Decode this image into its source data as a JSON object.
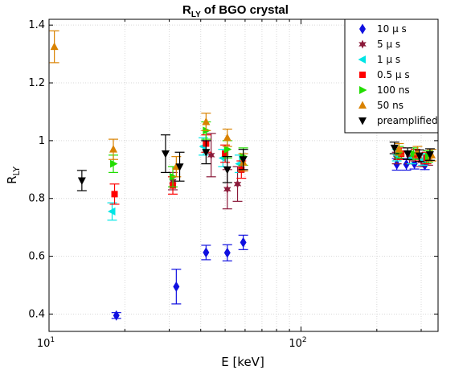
{
  "chart_data": {
    "type": "scatter",
    "title_main": "R",
    "title_sub": "LY",
    "title_rest": " of  BGO crystal",
    "xlabel": "E [keV]",
    "ylabel_main": "R",
    "ylabel_sub": "LY",
    "x_scale": "log",
    "xlim": [
      10,
      350
    ],
    "ylim": [
      0.34,
      1.42
    ],
    "x_ticks": [
      {
        "value": 10,
        "base": "10",
        "exp": "1"
      },
      {
        "value": 100,
        "base": "10",
        "exp": "2"
      }
    ],
    "y_ticks": [
      {
        "value": 0.4,
        "label": "0.4"
      },
      {
        "value": 0.6,
        "label": "0.6"
      },
      {
        "value": 0.8,
        "label": "0.8"
      },
      {
        "value": 1.0,
        "label": "1"
      },
      {
        "value": 1.2,
        "label": "1.2"
      },
      {
        "value": 1.4,
        "label": "1.4"
      }
    ],
    "grid": true,
    "legend_position": "top-right",
    "series": [
      {
        "name": "10  μ s",
        "color": "#1010e0",
        "marker": "diamond",
        "points": [
          [
            18.5,
            0.395,
            0.01
          ],
          [
            32,
            0.495,
            0.06
          ],
          [
            42,
            0.613,
            0.025
          ],
          [
            51,
            0.612,
            0.028
          ],
          [
            59,
            0.648,
            0.025
          ],
          [
            240,
            0.918,
            0.02
          ],
          [
            262,
            0.918,
            0.02
          ],
          [
            282,
            0.92,
            0.018
          ],
          [
            310,
            0.915,
            0.015
          ]
        ]
      },
      {
        "name": "5  μ s",
        "color": "#8b1a3a",
        "marker": "star",
        "points": [
          [
            31,
            0.86,
            0.03
          ],
          [
            44,
            0.95,
            0.075
          ],
          [
            51,
            0.832,
            0.068
          ],
          [
            56,
            0.85,
            0.06
          ],
          [
            240,
            0.94,
            0.02
          ],
          [
            270,
            0.94,
            0.02
          ],
          [
            300,
            0.93,
            0.02
          ],
          [
            320,
            0.935,
            0.02
          ]
        ]
      },
      {
        "name": "1  μ s",
        "color": "#00e5e5",
        "marker": "triangle-left",
        "points": [
          [
            17.8,
            0.755,
            0.03
          ],
          [
            41,
            0.98,
            0.03
          ],
          [
            49,
            0.94,
            0.03
          ],
          [
            57,
            0.92,
            0.03
          ],
          [
            240,
            0.95,
            0.02
          ],
          [
            275,
            0.94,
            0.02
          ],
          [
            305,
            0.935,
            0.02
          ]
        ]
      },
      {
        "name": "0.5  μ s",
        "color": "#ff0000",
        "marker": "square",
        "points": [
          [
            18.2,
            0.815,
            0.035
          ],
          [
            31,
            0.845,
            0.03
          ],
          [
            42,
            0.99,
            0.03
          ],
          [
            50,
            0.955,
            0.03
          ],
          [
            58,
            0.9,
            0.03
          ],
          [
            250,
            0.955,
            0.02
          ],
          [
            285,
            0.95,
            0.02
          ],
          [
            315,
            0.94,
            0.02
          ]
        ]
      },
      {
        "name": "100 ns",
        "color": "#22dd00",
        "marker": "triangle-right",
        "points": [
          [
            18,
            0.92,
            0.03
          ],
          [
            31,
            0.875,
            0.035
          ],
          [
            42,
            1.035,
            0.03
          ],
          [
            51,
            0.97,
            0.03
          ],
          [
            59,
            0.945,
            0.03
          ],
          [
            245,
            0.96,
            0.02
          ],
          [
            280,
            0.955,
            0.02
          ],
          [
            320,
            0.945,
            0.02
          ]
        ]
      },
      {
        "name": "50 ns",
        "color": "#d98200",
        "marker": "triangle-up",
        "points": [
          [
            10.5,
            1.325,
            0.055
          ],
          [
            18,
            0.97,
            0.035
          ],
          [
            32,
            0.91,
            0.035
          ],
          [
            42,
            1.065,
            0.03
          ],
          [
            51,
            1.01,
            0.03
          ],
          [
            59,
            0.925,
            0.03
          ],
          [
            245,
            0.97,
            0.02
          ],
          [
            290,
            0.96,
            0.02
          ],
          [
            330,
            0.95,
            0.02
          ]
        ]
      },
      {
        "name": "preamplified",
        "color": "#000000",
        "marker": "triangle-down",
        "points": [
          [
            13.5,
            0.862,
            0.035
          ],
          [
            29,
            0.955,
            0.065
          ],
          [
            33,
            0.91,
            0.05
          ],
          [
            42,
            0.96,
            0.04
          ],
          [
            51,
            0.9,
            0.045
          ],
          [
            59,
            0.935,
            0.035
          ],
          [
            235,
            0.975,
            0.02
          ],
          [
            265,
            0.955,
            0.02
          ],
          [
            295,
            0.948,
            0.02
          ],
          [
            325,
            0.952,
            0.02
          ]
        ]
      }
    ]
  }
}
